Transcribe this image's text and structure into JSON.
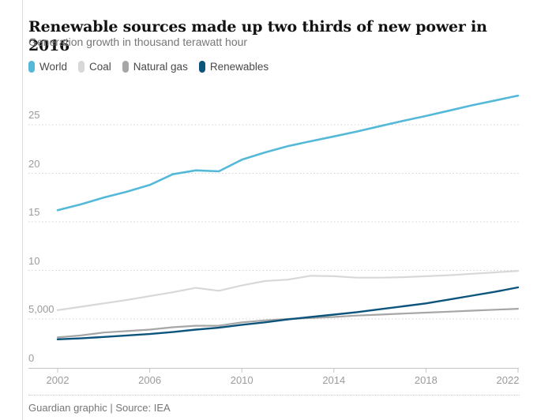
{
  "page": {
    "title": "Renewable sources made up two thirds of new power in 2016",
    "subtitle": "Generation growth in thousand terawatt hour",
    "footer": "Guardian graphic | Source: IEA"
  },
  "colors": {
    "world": "#54b9d8",
    "coal": "#d8d8d8",
    "natural_gas": "#a6a6a6",
    "renewables": "#0d547c",
    "gridline": "#d0d0d0",
    "axis": "#c4c4c4",
    "tick_label": "#9b9b9b",
    "title_text": "#121212",
    "muted_text": "#767676",
    "page_border": "#dcdcdc"
  },
  "chart_data": {
    "type": "line",
    "title": "Renewable sources made up two thirds of new power in 2016",
    "subtitle": "Generation growth in thousand terawatt hour",
    "xlabel": "",
    "ylabel": "Generation growth in thousand terawatt hour",
    "x": [
      2002,
      2003,
      2004,
      2005,
      2006,
      2007,
      2008,
      2009,
      2010,
      2011,
      2012,
      2013,
      2014,
      2015,
      2016,
      2017,
      2018,
      2019,
      2020,
      2021,
      2022
    ],
    "series": [
      {
        "name": "World",
        "color": "#54b9d8",
        "width": 2.6,
        "values": [
          16.2,
          16.8,
          17.5,
          18.1,
          18.8,
          19.9,
          20.3,
          20.2,
          21.4,
          22.15,
          22.8,
          23.3,
          23.8,
          24.3,
          24.85,
          25.4,
          25.9,
          26.45,
          27.0,
          27.5,
          28.0
        ]
      },
      {
        "name": "Coal",
        "color": "#d8d8d8",
        "width": 2.2,
        "values": [
          5.9,
          6.25,
          6.6,
          6.95,
          7.35,
          7.75,
          8.2,
          7.9,
          8.45,
          8.9,
          9.05,
          9.45,
          9.4,
          9.25,
          9.25,
          9.3,
          9.4,
          9.5,
          9.65,
          9.8,
          9.95
        ]
      },
      {
        "name": "Natural gas",
        "color": "#a6a6a6",
        "width": 2.2,
        "values": [
          3.1,
          3.3,
          3.6,
          3.75,
          3.9,
          4.15,
          4.3,
          4.3,
          4.65,
          4.85,
          5.0,
          5.1,
          5.2,
          5.35,
          5.45,
          5.55,
          5.65,
          5.75,
          5.85,
          5.95,
          6.05
        ]
      },
      {
        "name": "Renewables",
        "color": "#0d547c",
        "width": 2.4,
        "values": [
          2.9,
          3.0,
          3.15,
          3.3,
          3.45,
          3.65,
          3.9,
          4.1,
          4.4,
          4.65,
          4.95,
          5.2,
          5.45,
          5.7,
          6.0,
          6.3,
          6.6,
          7.0,
          7.4,
          7.8,
          8.25
        ]
      }
    ],
    "xlim": [
      2002,
      2022
    ],
    "ylim": [
      0,
      29
    ],
    "yticks": [
      {
        "value": 0,
        "label": "0"
      },
      {
        "value": 5,
        "label": "5,000"
      },
      {
        "value": 10,
        "label": "10"
      },
      {
        "value": 15,
        "label": "15"
      },
      {
        "value": 20,
        "label": "20"
      },
      {
        "value": 25,
        "label": "25"
      }
    ],
    "xticks": [
      {
        "value": 2002,
        "label": "2002"
      },
      {
        "value": 2006,
        "label": "2006"
      },
      {
        "value": 2010,
        "label": "2010"
      },
      {
        "value": 2014,
        "label": "2014"
      },
      {
        "value": 2018,
        "label": "2018"
      },
      {
        "value": 2022,
        "label": "2022"
      }
    ],
    "grid": "horizontal-dotted",
    "legend_position": "top-left"
  }
}
